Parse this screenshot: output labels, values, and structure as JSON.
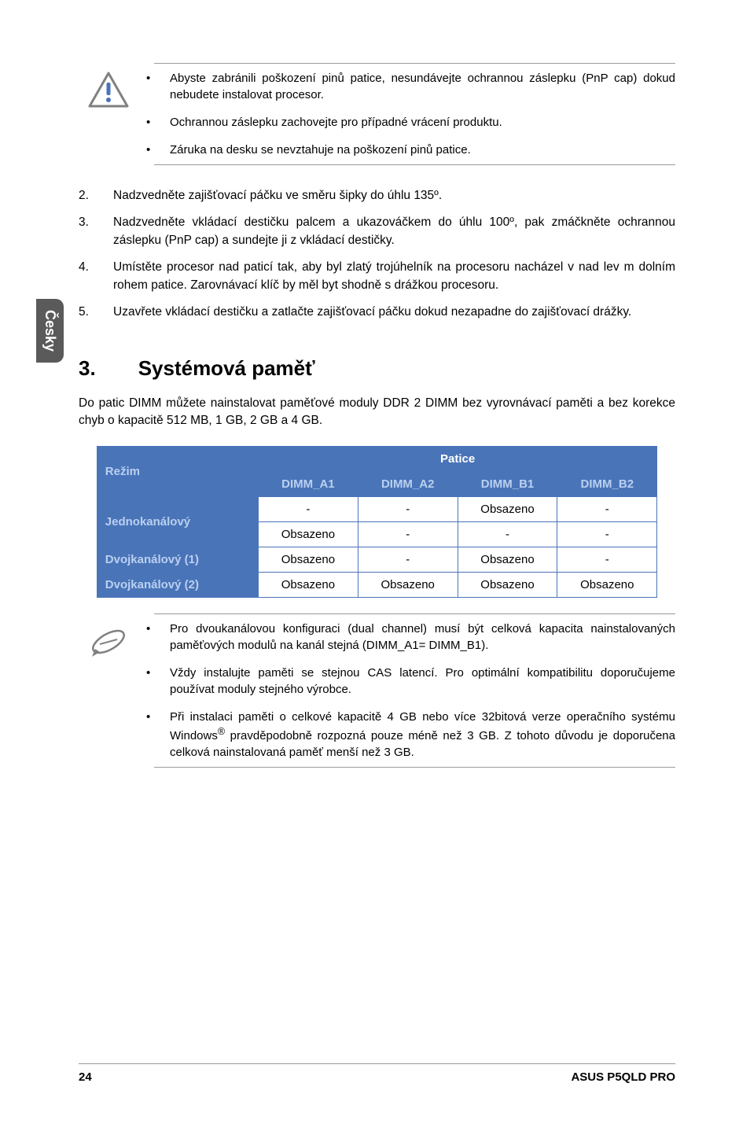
{
  "side_tab": "Česky",
  "callout_warning": {
    "items": [
      "Abyste zabránili poškození pinů patice, nesundávejte ochrannou záslepku (PnP cap) dokud nebudete instalovat procesor.",
      "Ochrannou záslepku zachovejte pro případné vrácení produktu.",
      "Záruka na desku se nevztahuje na poškození pinů patice."
    ]
  },
  "steps": [
    {
      "n": "2.",
      "t": "Nadzvedněte zajišťovací páčku ve směru šipky do úhlu 135º."
    },
    {
      "n": "3.",
      "t": "Nadzvedněte vkládací destičku palcem a ukazováčkem do úhlu 100º, pak zmáčkněte ochrannou záslepku (PnP cap) a sundejte ji z  vkládací destičky."
    },
    {
      "n": "4.",
      "t": "Umístěte procesor nad paticí tak, aby byl zlatý trojúhelník na procesoru nacházel v nad lev m dolním rohem patice. Zarovnávací klíč by měl byt shodně s drážkou procesoru."
    },
    {
      "n": "5.",
      "t": "Uzavřete vkládací destičku a zatlačte zajišťovací páčku dokud nezapadne do zajišťovací drážky."
    }
  ],
  "heading": {
    "num": "3.",
    "title": "Systémová paměť"
  },
  "intro": "Do patic DIMM můžete nainstalovat paměťové moduly DDR 2 DIMM bez vyrovnávací paměti a bez korekce chyb o kapacitě 512 MB, 1 GB, 2 GB a 4 GB.",
  "table": {
    "mode_label": "Režim",
    "socket_label": "Patice",
    "cols": [
      "DIMM_A1",
      "DIMM_A2",
      "DIMM_B1",
      "DIMM_B2"
    ],
    "rows": [
      {
        "label": "Jednokanálový",
        "cells": [
          [
            "-",
            "-",
            "Obsazeno",
            "-"
          ],
          [
            "Obsazeno",
            "-",
            "-",
            "-"
          ]
        ]
      },
      {
        "label": "Dvojkanálový (1)",
        "cells": [
          [
            "Obsazeno",
            "-",
            "Obsazeno",
            "-"
          ]
        ]
      },
      {
        "label": "Dvojkanálový (2)",
        "cells": [
          [
            "Obsazeno",
            "Obsazeno",
            "Obsazeno",
            "Obsazeno"
          ]
        ]
      }
    ],
    "colors": {
      "header_bg": "#4a74b8",
      "header_fg": "#ffffff",
      "subheader_fg": "#b9d0f0",
      "border": "#4a74b8"
    }
  },
  "callout_note": {
    "items": [
      {
        "pre": "Pro dvoukanálovou konfiguraci (dual channel) musí být celková kapacita nainstalovaných paměťových modulů na kanál stejná (DIMM_A1= DIMM_B1)."
      },
      {
        "pre": "Vždy instalujte paměti se stejnou CAS latencí. Pro optimální kompatibilitu doporučujeme používat moduly stejného výrobce."
      },
      {
        "pre": "Při instalaci paměti o celkové kapacitě 4 GB nebo více 32bitová verze operačního systému Windows",
        "sup": "®",
        "post": " pravděpodobně rozpozná pouze méně než 3 GB. Z tohoto důvodu je doporučena celková nainstalovaná paměť menší než 3 GB."
      }
    ]
  },
  "footer": {
    "page": "24",
    "product": "ASUS P5QLD PRO"
  }
}
